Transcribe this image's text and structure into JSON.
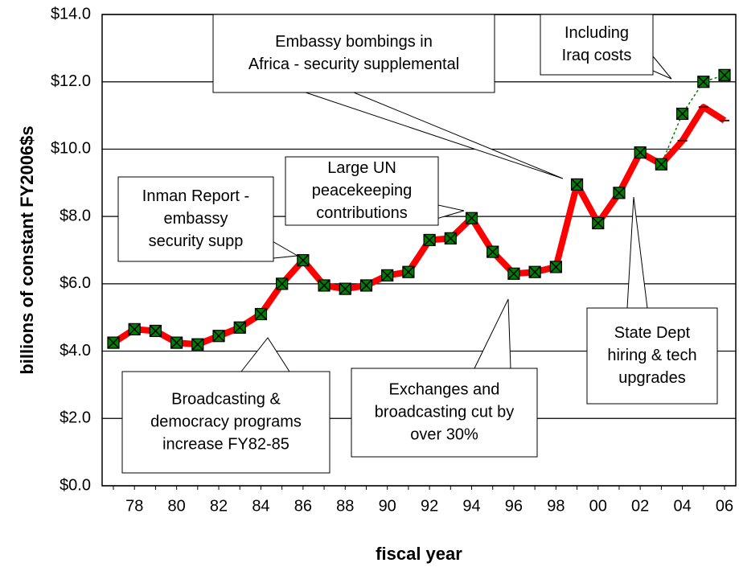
{
  "chart_data": {
    "type": "line",
    "y_label": "billions of constant FY2006$s",
    "x_label": "fiscal year",
    "categories": [
      null,
      "78",
      null,
      "80",
      null,
      "82",
      null,
      "84",
      null,
      "86",
      null,
      "88",
      null,
      "90",
      null,
      "92",
      null,
      "94",
      null,
      "96",
      null,
      "98",
      null,
      "00",
      null,
      "02",
      null,
      "04",
      null,
      "06"
    ],
    "series": [
      {
        "color": "#ff0000",
        "values": [
          4.25,
          4.65,
          4.6,
          4.25,
          4.2,
          4.45,
          4.7,
          5.1,
          6.0,
          6.7,
          5.95,
          5.85,
          5.95,
          6.25,
          6.35,
          7.3,
          7.35,
          7.95,
          6.95,
          6.3,
          6.35,
          6.5,
          8.95,
          7.8,
          8.7,
          9.9,
          9.55,
          10.25,
          11.25,
          10.85
        ]
      },
      {
        "color": "#008000",
        "values": [
          4.25,
          4.65,
          4.6,
          4.25,
          4.2,
          4.45,
          4.7,
          5.1,
          6.0,
          6.7,
          5.95,
          5.85,
          5.95,
          6.25,
          6.35,
          7.3,
          7.35,
          7.95,
          6.95,
          6.3,
          6.35,
          6.5,
          8.95,
          7.8,
          8.7,
          9.9,
          9.55,
          11.05,
          12.0,
          12.2
        ]
      }
    ],
    "ylim": [
      0,
      14
    ],
    "yticks": [
      {
        "value": 0,
        "label": "$0.0"
      },
      {
        "value": 2,
        "label": "$2.0"
      },
      {
        "value": 4,
        "label": "$4.0"
      },
      {
        "value": 6,
        "label": "$6.0"
      },
      {
        "value": 8,
        "label": "$8.0"
      },
      {
        "value": 10,
        "label": "$10.0"
      },
      {
        "value": 12,
        "label": "$12.0"
      },
      {
        "value": 14,
        "label": "$14.0"
      }
    ],
    "grid": true,
    "annotations": [
      {
        "lines": [
          "Inman Report -",
          "embassy",
          "security supp"
        ]
      },
      {
        "lines": [
          "Large UN",
          "peacekeeping",
          "contributions"
        ]
      },
      {
        "lines": [
          "Embassy bombings in",
          "Africa - security supplemental"
        ]
      },
      {
        "lines": [
          "Including",
          "Iraq costs"
        ]
      },
      {
        "lines": [
          "Broadcasting &",
          "democracy programs",
          "increase FY82-85"
        ]
      },
      {
        "lines": [
          "Exchanges and",
          "broadcasting cut by",
          "over 30%"
        ]
      },
      {
        "lines": [
          "State Dept",
          "hiring & tech",
          "upgrades"
        ]
      }
    ]
  }
}
